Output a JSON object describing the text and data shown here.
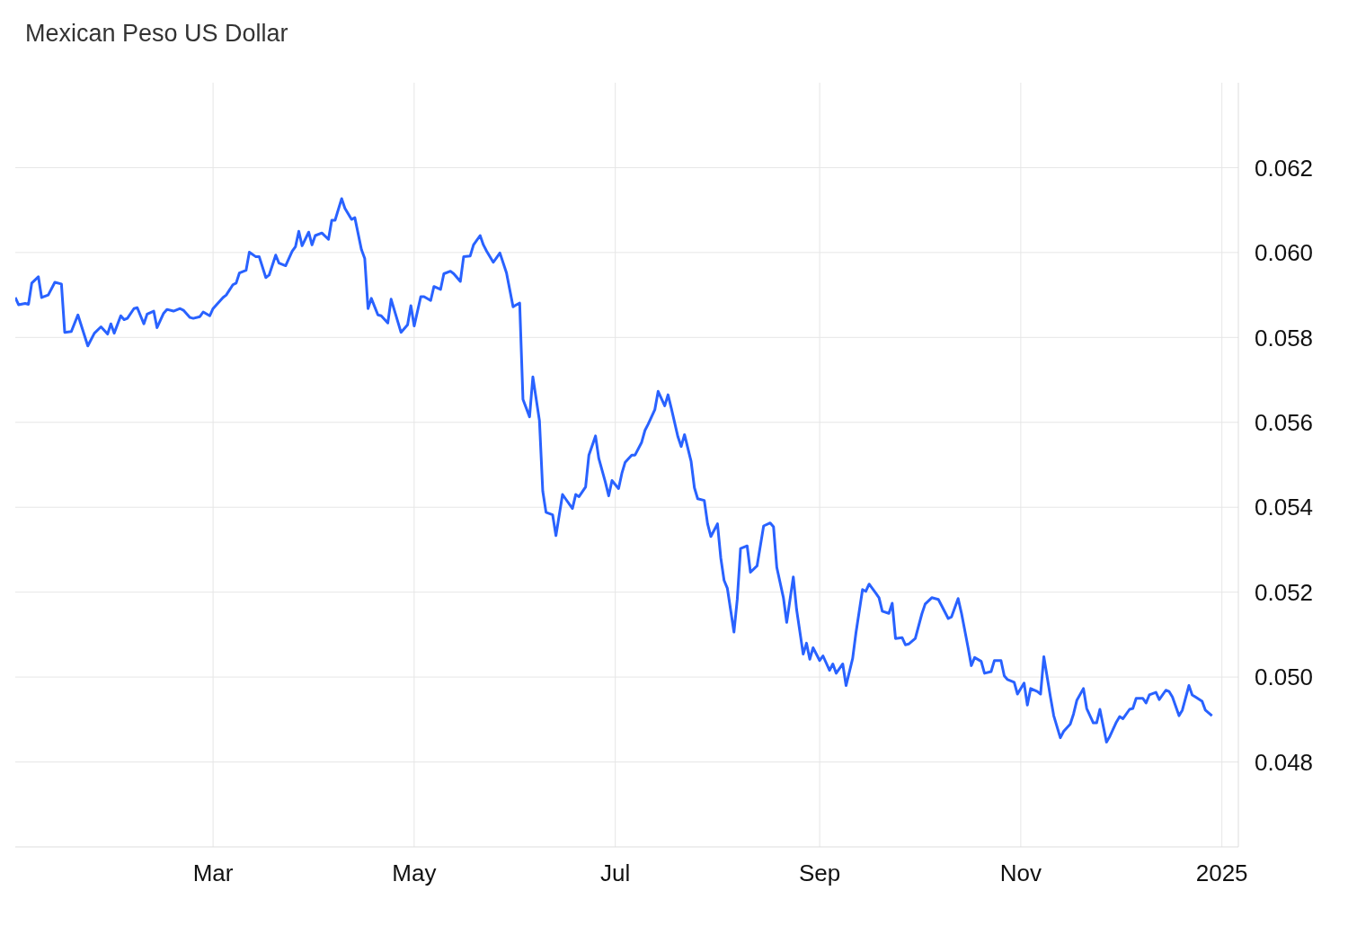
{
  "chart_data": {
    "type": "line",
    "title": "Mexican Peso US Dollar",
    "x": [
      "2024-01-01",
      "2024-01-02",
      "2024-01-04",
      "2024-01-05",
      "2024-01-06",
      "2024-01-08",
      "2024-01-09",
      "2024-01-11",
      "2024-01-13",
      "2024-01-15",
      "2024-01-16",
      "2024-01-18",
      "2024-01-20",
      "2024-01-23",
      "2024-01-25",
      "2024-01-27",
      "2024-01-29",
      "2024-01-30",
      "2024-01-31",
      "2024-02-02",
      "2024-02-03",
      "2024-02-04",
      "2024-02-06",
      "2024-02-07",
      "2024-02-09",
      "2024-02-10",
      "2024-02-12",
      "2024-02-13",
      "2024-02-15",
      "2024-02-16",
      "2024-02-18",
      "2024-02-20",
      "2024-02-21",
      "2024-02-23",
      "2024-02-24",
      "2024-02-26",
      "2024-02-27",
      "2024-02-29",
      "2024-03-01",
      "2024-03-04",
      "2024-03-05",
      "2024-03-07",
      "2024-03-08",
      "2024-03-09",
      "2024-03-11",
      "2024-03-12",
      "2024-03-14",
      "2024-03-15",
      "2024-03-17",
      "2024-03-18",
      "2024-03-20",
      "2024-03-21",
      "2024-03-23",
      "2024-03-25",
      "2024-03-26",
      "2024-03-27",
      "2024-03-28",
      "2024-03-30",
      "2024-03-31",
      "2024-04-01",
      "2024-04-03",
      "2024-04-05",
      "2024-04-06",
      "2024-04-07",
      "2024-04-09",
      "2024-04-10",
      "2024-04-12",
      "2024-04-13",
      "2024-04-15",
      "2024-04-16",
      "2024-04-17",
      "2024-04-18",
      "2024-04-20",
      "2024-04-21",
      "2024-04-23",
      "2024-04-24",
      "2024-04-27",
      "2024-04-29",
      "2024-04-30",
      "2024-05-01",
      "2024-05-03",
      "2024-05-04",
      "2024-05-06",
      "2024-05-07",
      "2024-05-09",
      "2024-05-10",
      "2024-05-12",
      "2024-05-13",
      "2024-05-15",
      "2024-05-16",
      "2024-05-18",
      "2024-05-19",
      "2024-05-21",
      "2024-05-22",
      "2024-05-23",
      "2024-05-25",
      "2024-05-26",
      "2024-05-27",
      "2024-05-29",
      "2024-05-31",
      "2024-06-01",
      "2024-06-02",
      "2024-06-03",
      "2024-06-05",
      "2024-06-06",
      "2024-06-08",
      "2024-06-09",
      "2024-06-10",
      "2024-06-12",
      "2024-06-13",
      "2024-06-15",
      "2024-06-16",
      "2024-06-18",
      "2024-06-19",
      "2024-06-20",
      "2024-06-22",
      "2024-06-23",
      "2024-06-25",
      "2024-06-26",
      "2024-06-28",
      "2024-06-29",
      "2024-06-30",
      "2024-07-02",
      "2024-07-03",
      "2024-07-04",
      "2024-07-06",
      "2024-07-07",
      "2024-07-09",
      "2024-07-10",
      "2024-07-11",
      "2024-07-13",
      "2024-07-14",
      "2024-07-16",
      "2024-07-17",
      "2024-07-18",
      "2024-07-20",
      "2024-07-21",
      "2024-07-22",
      "2024-07-24",
      "2024-07-25",
      "2024-07-26",
      "2024-07-28",
      "2024-07-29",
      "2024-07-30",
      "2024-08-01",
      "2024-08-02",
      "2024-08-03",
      "2024-08-04",
      "2024-08-06",
      "2024-08-07",
      "2024-08-08",
      "2024-08-10",
      "2024-08-11",
      "2024-08-13",
      "2024-08-14",
      "2024-08-15",
      "2024-08-17",
      "2024-08-18",
      "2024-08-19",
      "2024-08-21",
      "2024-08-22",
      "2024-08-24",
      "2024-08-25",
      "2024-08-27",
      "2024-08-28",
      "2024-08-29",
      "2024-08-30",
      "2024-09-01",
      "2024-09-02",
      "2024-09-04",
      "2024-09-05",
      "2024-09-06",
      "2024-09-08",
      "2024-09-09",
      "2024-09-11",
      "2024-09-12",
      "2024-09-14",
      "2024-09-15",
      "2024-09-16",
      "2024-09-18",
      "2024-09-19",
      "2024-09-20",
      "2024-09-22",
      "2024-09-23",
      "2024-09-24",
      "2024-09-26",
      "2024-09-27",
      "2024-09-28",
      "2024-09-30",
      "2024-10-02",
      "2024-10-03",
      "2024-10-05",
      "2024-10-07",
      "2024-10-08",
      "2024-10-10",
      "2024-10-11",
      "2024-10-13",
      "2024-10-14",
      "2024-10-16",
      "2024-10-17",
      "2024-10-18",
      "2024-10-20",
      "2024-10-21",
      "2024-10-23",
      "2024-10-24",
      "2024-10-26",
      "2024-10-27",
      "2024-10-28",
      "2024-10-30",
      "2024-10-31",
      "2024-11-02",
      "2024-11-03",
      "2024-11-04",
      "2024-11-06",
      "2024-11-07",
      "2024-11-08",
      "2024-11-10",
      "2024-11-11",
      "2024-11-13",
      "2024-11-14",
      "2024-11-16",
      "2024-11-17",
      "2024-11-18",
      "2024-11-20",
      "2024-11-21",
      "2024-11-23",
      "2024-11-24",
      "2024-11-25",
      "2024-11-27",
      "2024-11-28",
      "2024-11-30",
      "2024-12-01",
      "2024-12-02",
      "2024-12-04",
      "2024-12-05",
      "2024-12-06",
      "2024-12-08",
      "2024-12-09",
      "2024-12-10",
      "2024-12-12",
      "2024-12-13",
      "2024-12-15",
      "2024-12-16",
      "2024-12-17",
      "2024-12-19",
      "2024-12-20",
      "2024-12-22",
      "2024-12-23",
      "2024-12-24",
      "2024-12-26",
      "2024-12-27",
      "2024-12-29"
    ],
    "series": [
      {
        "color": "#2962ff",
        "values": [
          0.05894,
          0.05877,
          0.0588,
          0.05878,
          0.05928,
          0.05943,
          0.05894,
          0.059,
          0.0593,
          0.05926,
          0.05812,
          0.05814,
          0.05853,
          0.0578,
          0.0581,
          0.05825,
          0.05808,
          0.05832,
          0.0581,
          0.05851,
          0.05842,
          0.05845,
          0.05868,
          0.0587,
          0.05832,
          0.05855,
          0.05862,
          0.05823,
          0.05857,
          0.05866,
          0.05862,
          0.05868,
          0.05864,
          0.05847,
          0.05845,
          0.05849,
          0.0586,
          0.05851,
          0.05868,
          0.05894,
          0.059,
          0.05924,
          0.05928,
          0.05952,
          0.05958,
          0.06001,
          0.0599,
          0.0599,
          0.05941,
          0.05947,
          0.05994,
          0.05975,
          0.05969,
          0.06003,
          0.06014,
          0.0605,
          0.06016,
          0.06048,
          0.06018,
          0.0604,
          0.06046,
          0.06031,
          0.06076,
          0.06076,
          0.06127,
          0.06104,
          0.06078,
          0.06082,
          0.06007,
          0.05986,
          0.05868,
          0.05892,
          0.05853,
          0.05851,
          0.05834,
          0.0589,
          0.05812,
          0.0583,
          0.05875,
          0.05827,
          0.05896,
          0.05896,
          0.05887,
          0.0592,
          0.05913,
          0.0595,
          0.05956,
          0.0595,
          0.05932,
          0.0599,
          0.05992,
          0.06018,
          0.0604,
          0.06018,
          0.06003,
          0.05977,
          0.05988,
          0.05999,
          0.05952,
          0.05872,
          0.05877,
          0.05881,
          0.05654,
          0.05613,
          0.05707,
          0.05604,
          0.05438,
          0.05388,
          0.05382,
          0.05333,
          0.0543,
          0.05419,
          0.05397,
          0.0543,
          0.05425,
          0.05448,
          0.05523,
          0.05568,
          0.05515,
          0.05459,
          0.05427,
          0.05463,
          0.05444,
          0.0548,
          0.05506,
          0.05523,
          0.05523,
          0.05553,
          0.05581,
          0.05596,
          0.0563,
          0.05673,
          0.05639,
          0.05665,
          0.05633,
          0.05566,
          0.05543,
          0.05571,
          0.05508,
          0.05446,
          0.0542,
          0.05416,
          0.05361,
          0.05331,
          0.05361,
          0.05281,
          0.05228,
          0.05209,
          0.05106,
          0.05183,
          0.05303,
          0.05309,
          0.05247,
          0.05262,
          0.05309,
          0.05356,
          0.05363,
          0.05354,
          0.05258,
          0.05187,
          0.05129,
          0.05236,
          0.05159,
          0.05054,
          0.0508,
          0.05042,
          0.05069,
          0.05039,
          0.0505,
          0.05016,
          0.05031,
          0.05009,
          0.05031,
          0.0498,
          0.05044,
          0.05104,
          0.05206,
          0.05202,
          0.05219,
          0.05198,
          0.05187,
          0.05155,
          0.0515,
          0.05174,
          0.05091,
          0.05093,
          0.05076,
          0.05078,
          0.05091,
          0.05149,
          0.05172,
          0.05187,
          0.05183,
          0.05168,
          0.05138,
          0.05142,
          0.05185,
          0.05151,
          0.0507,
          0.05027,
          0.05046,
          0.05037,
          0.05009,
          0.05013,
          0.05039,
          0.05039,
          0.05003,
          0.04994,
          0.04988,
          0.0496,
          0.04986,
          0.04934,
          0.04973,
          0.04966,
          0.0496,
          0.05048,
          0.04953,
          0.04909,
          0.04857,
          0.04872,
          0.04889,
          0.04913,
          0.04945,
          0.04973,
          0.04926,
          0.04892,
          0.04892,
          0.04924,
          0.04847,
          0.0486,
          0.04894,
          0.04907,
          0.04902,
          0.04924,
          0.04926,
          0.0495,
          0.0495,
          0.04939,
          0.04958,
          0.04964,
          0.04947,
          0.04969,
          0.04966,
          0.04953,
          0.04909,
          0.04922,
          0.0498,
          0.04958,
          0.04953,
          0.04943,
          0.04922,
          0.04909
        ]
      }
    ],
    "xlim": [
      "2024-01-01",
      "2025-01-06"
    ],
    "xticks": [
      {
        "value": "2024-03-01",
        "label": "Mar"
      },
      {
        "value": "2024-05-01",
        "label": "May"
      },
      {
        "value": "2024-07-01",
        "label": "Jul"
      },
      {
        "value": "2024-09-01",
        "label": "Sep"
      },
      {
        "value": "2024-11-01",
        "label": "Nov"
      },
      {
        "value": "2025-01-01",
        "label": "2025"
      }
    ],
    "ylim": [
      0.046,
      0.064
    ],
    "yticks": [
      0.048,
      {
        "value": 0.05,
        "label": "0.050"
      },
      0.052,
      0.054,
      0.056,
      0.058,
      {
        "value": 0.06,
        "label": "0.060"
      },
      0.062
    ],
    "grid": true,
    "marker": "none",
    "line_style": "solid"
  }
}
